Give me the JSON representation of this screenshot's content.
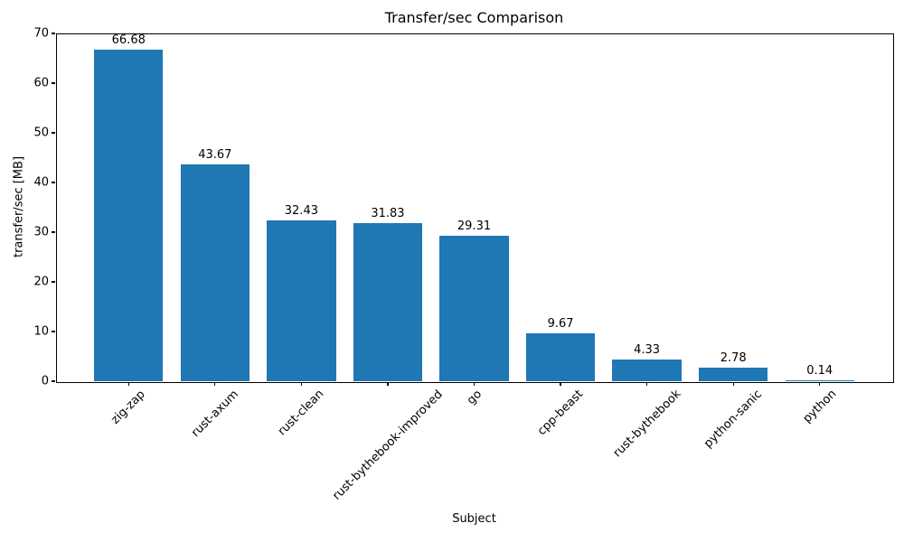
{
  "chart_data": {
    "type": "bar",
    "title": "Transfer/sec Comparison",
    "xlabel": "Subject",
    "ylabel": "transfer/sec [MB]",
    "categories": [
      "zig-zap",
      "rust-axum",
      "rust-clean",
      "rust-bythebook-improved",
      "go",
      "cpp-beast",
      "rust-bythebook",
      "python-sanic",
      "python"
    ],
    "values": [
      66.68,
      43.67,
      32.43,
      31.83,
      29.31,
      9.67,
      4.33,
      2.78,
      0.14
    ],
    "value_labels": [
      "66.68",
      "43.67",
      "32.43",
      "31.83",
      "29.31",
      "9.67",
      "4.33",
      "2.78",
      "0.14"
    ],
    "ylim": [
      0,
      70
    ],
    "yticks": [
      0,
      10,
      20,
      30,
      40,
      50,
      60,
      70
    ],
    "bar_color": "#1f77b4",
    "grid": false,
    "legend": null,
    "x_tick_rotation_deg": 45
  }
}
